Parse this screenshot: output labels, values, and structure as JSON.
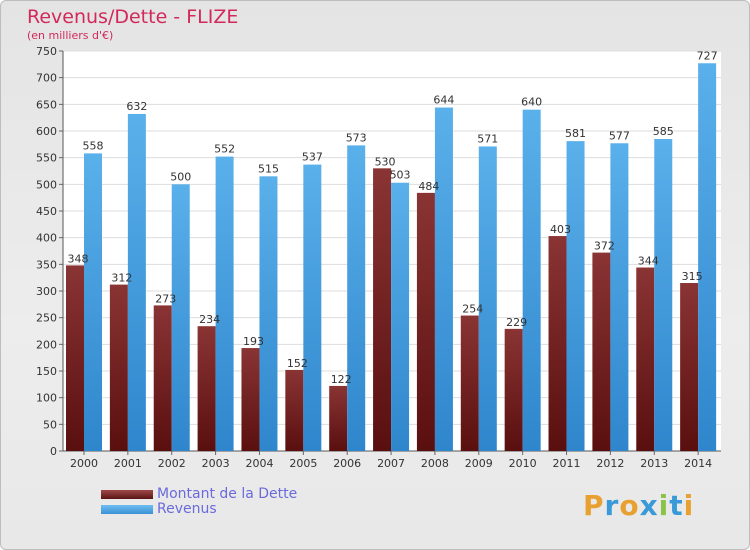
{
  "title": "Revenus/Dette - FLIZE",
  "subtitle": "(en milliers d'€)",
  "legend": {
    "debt_label": "Montant de la Dette",
    "revenue_label": "Revenus"
  },
  "logo": {
    "letters": [
      "P",
      "r",
      "o",
      "x",
      "i",
      "t",
      "i"
    ],
    "colors": [
      "#e8a030",
      "#3a9ad8",
      "#e8a030",
      "#3a9ad8",
      "#8bc34a",
      "#3a9ad8",
      "#e8a030"
    ]
  },
  "colors": {
    "debt": "#7a2b2b",
    "revenue": "#4aa3e3",
    "title": "#d2285a"
  },
  "chart_data": {
    "type": "bar",
    "title": "Revenus/Dette - FLIZE",
    "subtitle": "(en milliers d'€)",
    "categories": [
      "2000",
      "2001",
      "2002",
      "2003",
      "2004",
      "2005",
      "2006",
      "2007",
      "2008",
      "2009",
      "2010",
      "2011",
      "2012",
      "2013",
      "2014"
    ],
    "series": [
      {
        "name": "Montant de la Dette",
        "values": [
          348,
          312,
          273,
          234,
          193,
          152,
          122,
          530,
          484,
          254,
          229,
          403,
          372,
          344,
          315
        ]
      },
      {
        "name": "Revenus",
        "values": [
          558,
          632,
          500,
          552,
          515,
          537,
          573,
          503,
          644,
          571,
          640,
          581,
          577,
          585,
          727
        ]
      }
    ],
    "ylim": [
      0,
      750
    ],
    "yticks": [
      0,
      50,
      100,
      150,
      200,
      250,
      300,
      350,
      400,
      450,
      500,
      550,
      600,
      650,
      700,
      750
    ],
    "grid": true,
    "legend_position": "bottom-left"
  }
}
